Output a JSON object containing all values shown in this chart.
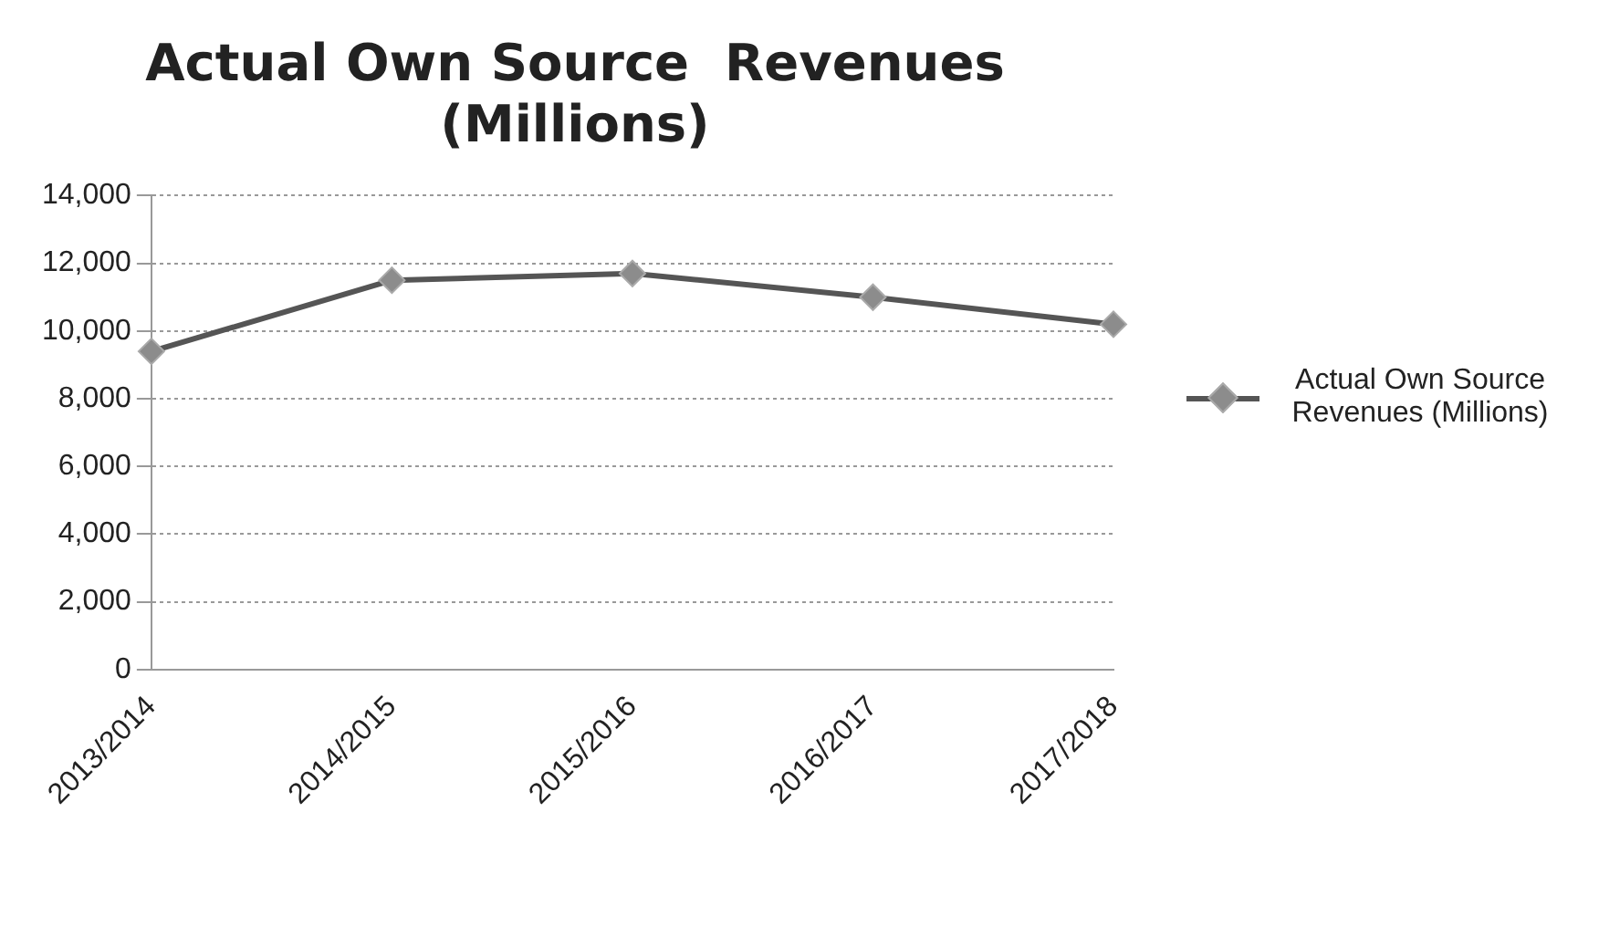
{
  "chart_data": {
    "type": "line",
    "title": [
      "Actual Own Source  Revenues",
      "(Millions)"
    ],
    "categories": [
      "2013/2014",
      "2014/2015",
      "2015/2016",
      "2016/2017",
      "2017/2018"
    ],
    "series": [
      {
        "name": "Actual Own Source Revenues (Millions)",
        "color": "#8c8c8c",
        "values": [
          9400,
          11500,
          11700,
          11000,
          10200
        ]
      }
    ],
    "ylim": [
      0,
      14000
    ],
    "yticks": [
      {
        "value": 0,
        "label": "0"
      },
      {
        "value": 2000,
        "label": "2,000"
      },
      {
        "value": 4000,
        "label": "4,000"
      },
      {
        "value": 6000,
        "label": "6,000"
      },
      {
        "value": 8000,
        "label": "8,000"
      },
      {
        "value": 10000,
        "label": "10,000"
      },
      {
        "value": 12000,
        "label": "12,000"
      },
      {
        "value": 14000,
        "label": "14,000"
      }
    ],
    "grid": "y",
    "legend": "right",
    "marker": "diamond"
  }
}
